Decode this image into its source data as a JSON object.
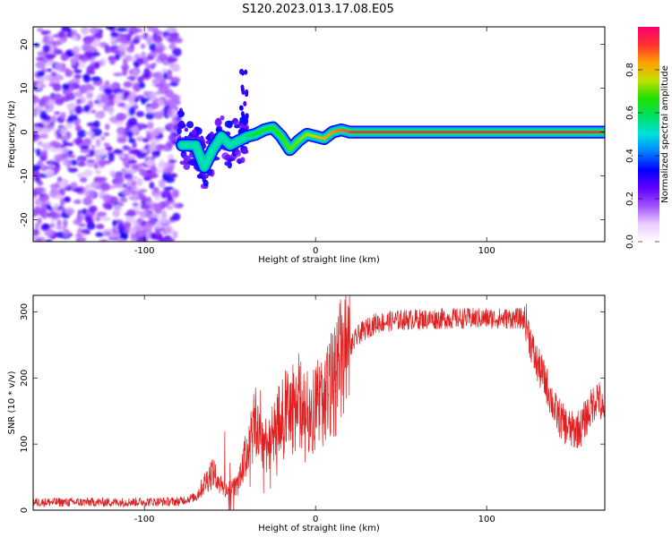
{
  "title": "S120.2023.013.17.08.E05",
  "chart_data": [
    {
      "type": "heatmap",
      "xlabel": "Height of straight line (km)",
      "ylabel": "Frequency (Hz)",
      "xlim": [
        -165,
        169
      ],
      "ylim": [
        -25,
        24
      ],
      "xticks": [
        -100,
        0,
        100
      ],
      "yticks": [
        -20,
        -10,
        0,
        10,
        20
      ],
      "colorbar": {
        "label": "Normalized spectral amplitude",
        "range": [
          0,
          1
        ],
        "ticks": [
          "0.0",
          "0.2",
          "0.4",
          "0.6",
          "0.8"
        ],
        "colors": [
          "#ffffff",
          "#e8ccff",
          "#a050ff",
          "#6000ff",
          "#0000ff",
          "#0080ff",
          "#00e0e0",
          "#00e060",
          "#20e000",
          "#c0e000",
          "#ffa000",
          "#ff3030",
          "#ff0070"
        ]
      },
      "ridge": {
        "description_points": [
          [
            -78,
            -3
          ],
          [
            -70,
            -3
          ],
          [
            -65,
            -8
          ],
          [
            -60,
            -4
          ],
          [
            -55,
            -1
          ],
          [
            -50,
            -3
          ],
          [
            -45,
            -2
          ],
          [
            -40,
            -1
          ],
          [
            -35,
            -0.5
          ],
          [
            -30,
            0.5
          ],
          [
            -25,
            1
          ],
          [
            -20,
            -1
          ],
          [
            -15,
            -4
          ],
          [
            -10,
            -2
          ],
          [
            -5,
            -0.5
          ],
          [
            0,
            -1
          ],
          [
            5,
            -1.5
          ],
          [
            10,
            0
          ],
          [
            15,
            0.5
          ],
          [
            20,
            0
          ],
          [
            169,
            0
          ]
        ],
        "peak_amplitude_from_height": -5
      }
    },
    {
      "type": "line",
      "xlabel": "Height of straight line (km)",
      "ylabel": "SNR (10 * v/v)",
      "xlim": [
        -165,
        169
      ],
      "ylim": [
        0,
        325
      ],
      "xticks": [
        -100,
        0,
        100
      ],
      "yticks": [
        0,
        100,
        200,
        300
      ],
      "series": [
        {
          "color": "#e02020",
          "envelope": [
            [
              -165,
              12
            ],
            [
              -120,
              12
            ],
            [
              -80,
              13
            ],
            [
              -70,
              20
            ],
            [
              -60,
              60
            ],
            [
              -55,
              35
            ],
            [
              -50,
              30
            ],
            [
              -45,
              40
            ],
            [
              -40,
              90
            ],
            [
              -35,
              130
            ],
            [
              -30,
              100
            ],
            [
              -25,
              110
            ],
            [
              -20,
              140
            ],
            [
              -15,
              150
            ],
            [
              -10,
              160
            ],
            [
              -5,
              150
            ],
            [
              0,
              155
            ],
            [
              5,
              170
            ],
            [
              10,
              190
            ],
            [
              15,
              225
            ],
            [
              20,
              245
            ],
            [
              25,
              265
            ],
            [
              30,
              275
            ],
            [
              35,
              283
            ],
            [
              50,
              288
            ],
            [
              80,
              290
            ],
            [
              100,
              290
            ],
            [
              120,
              290
            ],
            [
              123,
              285
            ],
            [
              128,
              230
            ],
            [
              135,
              190
            ],
            [
              140,
              150
            ],
            [
              145,
              130
            ],
            [
              150,
              120
            ],
            [
              155,
              125
            ],
            [
              160,
              150
            ],
            [
              165,
              175
            ],
            [
              169,
              135
            ]
          ]
        }
      ]
    }
  ]
}
